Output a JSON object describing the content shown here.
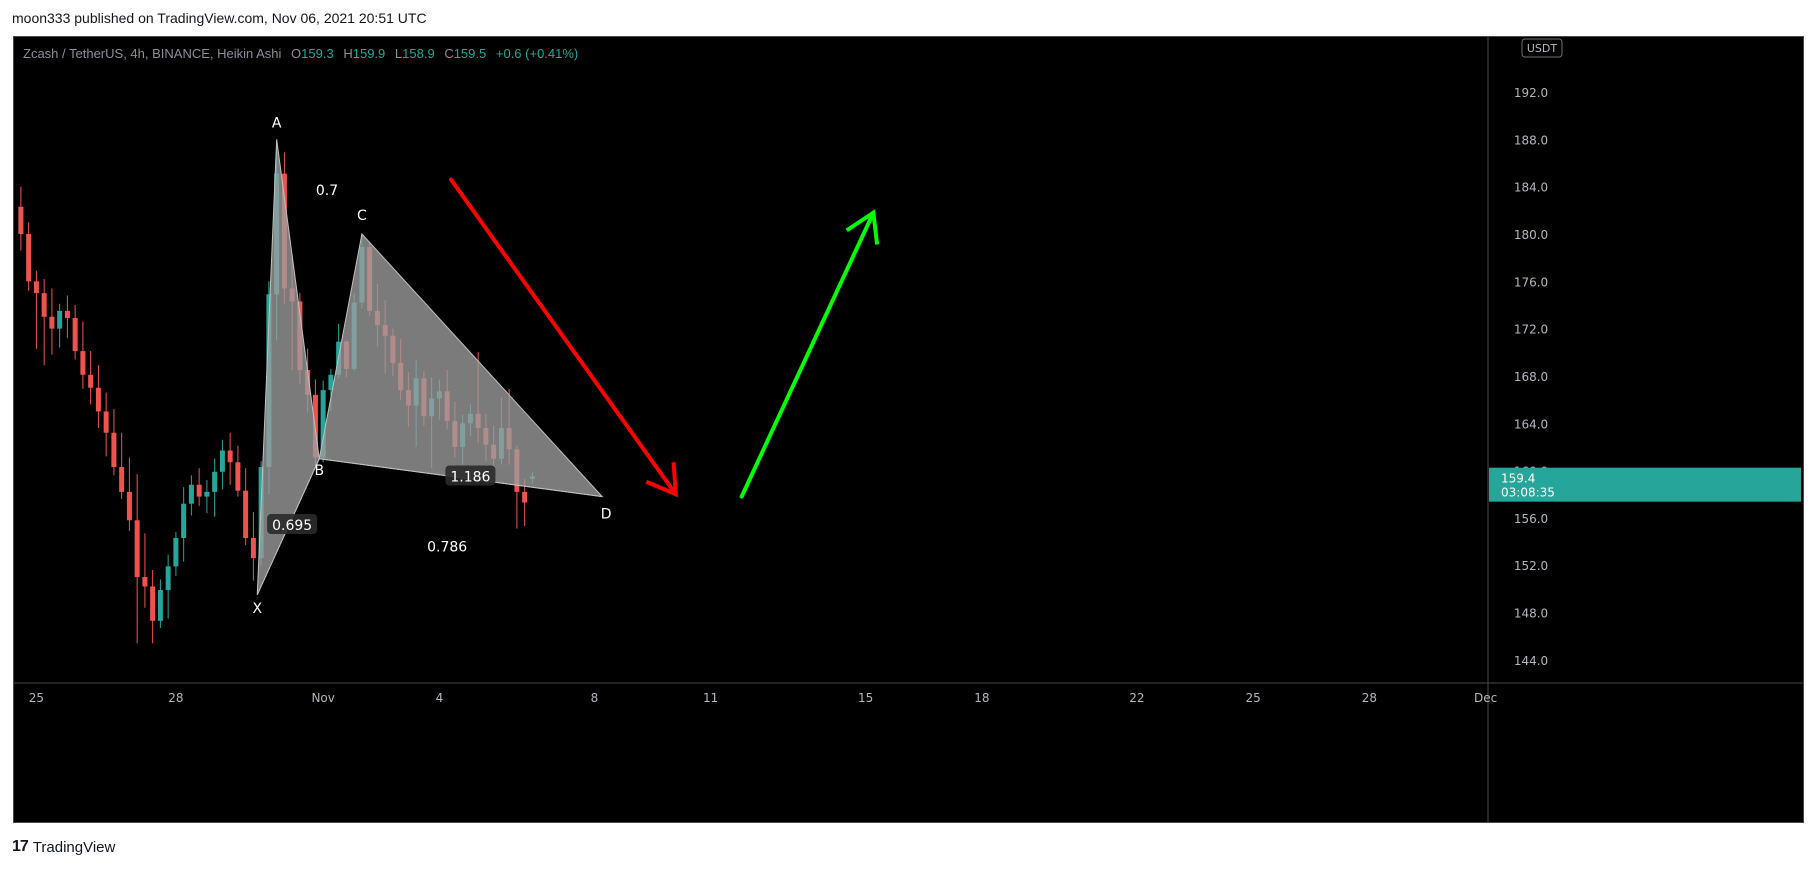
{
  "header": {
    "published": "moon333 published on TradingView.com, Nov 06, 2021 20:51 UTC"
  },
  "footer": {
    "brand": "TradingView",
    "logo_glyph": "17"
  },
  "legend": {
    "symbol": "Zcash / TetherUS, 4h, BINANCE, Heikin Ashi",
    "o_label": "O",
    "o_value": "159.3",
    "h_label": "H",
    "h_value": "159.9",
    "l_label": "L",
    "l_value": "158.9",
    "c_label": "C",
    "c_value": "159.5",
    "change": "+0.6 (+0.41%)"
  },
  "colors": {
    "background": "#000000",
    "up": "#26a69a",
    "down": "#ef5350",
    "pattern_fill": "#9e9e9e",
    "arrow_down": "#ff0000",
    "arrow_up": "#00ff00",
    "price_label": "#26a69a"
  },
  "chart_data": {
    "type": "candlestick",
    "style": "Heikin Ashi",
    "symbol": "ZEC/USDT",
    "timeframe": "4h",
    "exchange": "BINANCE",
    "currency": "USDT",
    "ylim": [
      142.0,
      196.0
    ],
    "y_ticks": [
      144.0,
      148.0,
      152.0,
      156.0,
      160.0,
      164.0,
      168.0,
      172.0,
      176.0,
      180.0,
      184.0,
      188.0,
      192.0
    ],
    "y_tick_labels": [
      "144.0",
      "148.0",
      "152.0",
      "156.0",
      "160.0",
      "164.0",
      "168.0",
      "172.0",
      "176.0",
      "180.0",
      "184.0",
      "188.0",
      "192.0"
    ],
    "x_ticks": [
      {
        "label": "25",
        "bar": 2
      },
      {
        "label": "28",
        "bar": 20
      },
      {
        "label": "Nov",
        "bar": 39
      },
      {
        "label": "4",
        "bar": 54
      },
      {
        "label": "8",
        "bar": 74
      },
      {
        "label": "11",
        "bar": 89
      },
      {
        "label": "15",
        "bar": 109
      },
      {
        "label": "18",
        "bar": 124
      },
      {
        "label": "22",
        "bar": 144
      },
      {
        "label": "25",
        "bar": 159
      },
      {
        "label": "28",
        "bar": 174
      },
      {
        "label": "Dec",
        "bar": 189
      }
    ],
    "xlim": [
      -0.5,
      191.5
    ],
    "candles": [
      [
        182.3,
        184.0,
        178.6,
        180.0
      ],
      [
        180.0,
        181.0,
        175.2,
        176.0
      ],
      [
        176.0,
        176.9,
        170.3,
        175.0
      ],
      [
        175.0,
        176.2,
        168.9,
        173.0
      ],
      [
        173.0,
        175.4,
        169.8,
        172.0
      ],
      [
        172.0,
        174.1,
        170.4,
        173.5
      ],
      [
        173.5,
        174.8,
        171.2,
        172.9
      ],
      [
        172.9,
        174.0,
        169.4,
        170.1
      ],
      [
        170.1,
        172.6,
        166.9,
        168.1
      ],
      [
        168.1,
        170.1,
        165.6,
        167.0
      ],
      [
        167.0,
        168.9,
        163.6,
        165.0
      ],
      [
        165.0,
        166.6,
        161.2,
        163.2
      ],
      [
        163.2,
        165.2,
        159.6,
        160.3
      ],
      [
        160.3,
        163.2,
        157.6,
        158.2
      ],
      [
        158.2,
        161.1,
        154.9,
        155.8
      ],
      [
        155.8,
        159.7,
        145.4,
        151.0
      ],
      [
        151.0,
        154.7,
        148.4,
        150.2
      ],
      [
        150.2,
        151.6,
        145.4,
        147.3
      ],
      [
        147.3,
        150.8,
        146.7,
        149.9
      ],
      [
        149.9,
        152.9,
        147.5,
        151.9
      ],
      [
        151.9,
        154.8,
        151.1,
        154.3
      ],
      [
        154.3,
        158.6,
        152.3,
        157.2
      ],
      [
        157.2,
        159.6,
        156.2,
        158.8
      ],
      [
        158.8,
        160.2,
        157.0,
        157.8
      ],
      [
        157.8,
        159.2,
        156.4,
        158.2
      ],
      [
        158.2,
        161.0,
        156.1,
        159.9
      ],
      [
        159.9,
        162.6,
        158.4,
        161.7
      ],
      [
        161.7,
        163.2,
        158.8,
        160.7
      ],
      [
        160.7,
        162.1,
        157.8,
        158.3
      ],
      [
        158.3,
        160.2,
        153.7,
        154.3
      ],
      [
        154.3,
        156.5,
        150.7,
        152.6
      ],
      [
        152.6,
        160.8,
        151.9,
        160.3
      ],
      [
        160.3,
        176.0,
        158.0,
        174.9
      ],
      [
        174.9,
        188.0,
        171.0,
        185.1
      ],
      [
        185.1,
        186.9,
        174.1,
        175.4
      ],
      [
        175.4,
        178.3,
        168.5,
        174.3
      ],
      [
        174.3,
        175.0,
        167.3,
        168.5
      ],
      [
        168.5,
        170.3,
        164.9,
        166.4
      ],
      [
        166.4,
        167.7,
        160.4,
        161.1
      ],
      [
        161.1,
        167.6,
        160.7,
        166.8
      ],
      [
        166.8,
        168.6,
        165.0,
        168.1
      ],
      [
        168.1,
        172.4,
        167.8,
        170.9
      ],
      [
        170.9,
        171.0,
        167.9,
        168.6
      ],
      [
        168.6,
        175.0,
        168.4,
        174.2
      ],
      [
        174.2,
        179.9,
        173.7,
        178.9
      ],
      [
        178.9,
        179.3,
        173.1,
        173.5
      ],
      [
        173.5,
        175.8,
        170.5,
        172.3
      ],
      [
        172.3,
        174.4,
        168.2,
        171.4
      ],
      [
        171.4,
        172.0,
        168.0,
        169.1
      ],
      [
        169.1,
        171.1,
        166.0,
        166.8
      ],
      [
        166.8,
        168.3,
        163.7,
        165.5
      ],
      [
        165.5,
        169.4,
        162.0,
        167.8
      ],
      [
        167.8,
        168.4,
        163.8,
        164.6
      ],
      [
        164.6,
        167.9,
        160.2,
        166.1
      ],
      [
        166.1,
        167.7,
        164.3,
        166.7
      ],
      [
        166.7,
        168.5,
        163.5,
        164.2
      ],
      [
        164.2,
        165.8,
        161.1,
        162.0
      ],
      [
        162.0,
        164.7,
        160.5,
        164.0
      ],
      [
        164.0,
        165.6,
        162.9,
        164.8
      ],
      [
        164.8,
        170.0,
        162.3,
        163.6
      ],
      [
        163.6,
        164.8,
        160.8,
        162.2
      ],
      [
        162.2,
        163.8,
        159.4,
        161.0
      ],
      [
        161.0,
        166.2,
        160.5,
        163.6
      ],
      [
        163.6,
        166.9,
        160.5,
        161.8
      ],
      [
        161.8,
        162.1,
        155.1,
        158.2
      ],
      [
        158.2,
        159.3,
        155.3,
        157.3
      ],
      [
        159.3,
        159.9,
        158.9,
        159.5
      ]
    ],
    "harmonic_pattern": {
      "points": [
        {
          "label": "X",
          "bar": 30.5,
          "price": 149.5
        },
        {
          "label": "A",
          "bar": 33.0,
          "price": 188.0
        },
        {
          "label": "B",
          "bar": 38.5,
          "price": 161.0
        },
        {
          "label": "C",
          "bar": 44.0,
          "price": 180.0
        },
        {
          "label": "D",
          "bar": 75.0,
          "price": 157.8
        }
      ],
      "ratios": [
        {
          "label": "0.7",
          "bar": 39.5,
          "price": 183.7
        },
        {
          "label": "0.695",
          "bar": 35.0,
          "price": 155.4
        },
        {
          "label": "1.186",
          "bar": 58.0,
          "price": 159.5
        },
        {
          "label": "0.786",
          "bar": 55.0,
          "price": 153.6
        }
      ]
    },
    "arrows": [
      {
        "name": "down",
        "color": "#ff0000",
        "from": {
          "bar": 55.5,
          "price": 184.6
        },
        "to": {
          "bar": 84.5,
          "price": 158.0
        }
      },
      {
        "name": "up",
        "color": "#00ff00",
        "from": {
          "bar": 93.0,
          "price": 157.8
        },
        "to": {
          "bar": 110.0,
          "price": 181.8
        }
      }
    ],
    "last_price": {
      "price": 159.4,
      "label": "159.4",
      "countdown": "03:08:35"
    }
  }
}
